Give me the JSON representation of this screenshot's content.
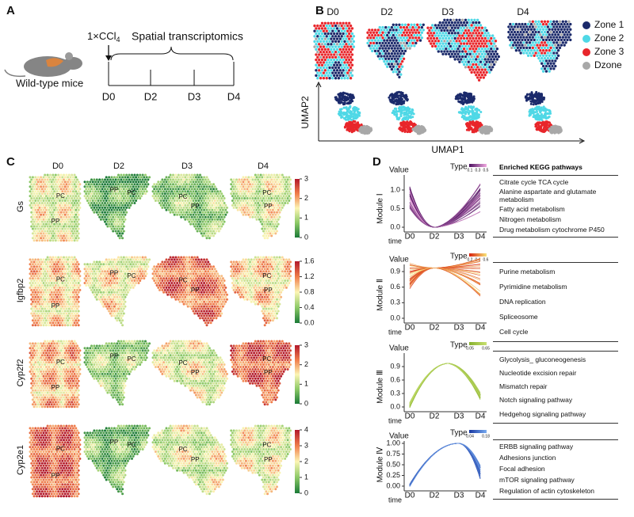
{
  "panel_a": {
    "label": "A",
    "treatment": {
      "text": "1×CCl",
      "subscript": "4"
    },
    "assay": "Spatial transcriptomics",
    "mouse": "Wild-type mice",
    "timepoints": [
      "D0",
      "D2",
      "D3",
      "D4"
    ]
  },
  "panel_b": {
    "label": "B",
    "timepoints": [
      "D0",
      "D2",
      "D3",
      "D4"
    ],
    "legend": [
      {
        "label": "Zone 1",
        "color": "#1b2a6b"
      },
      {
        "label": "Zone 2",
        "color": "#4fd8e6"
      },
      {
        "label": "Zone 3",
        "color": "#e8262b"
      },
      {
        "label": "Dzone",
        "color": "#a8a8a8"
      }
    ],
    "x_axis": "UMAP1",
    "y_axis": "UMAP2"
  },
  "panel_c": {
    "label": "C",
    "timepoints": [
      "D0",
      "D2",
      "D3",
      "D4"
    ],
    "zones": {
      "pp": "PP",
      "pc": "PC"
    },
    "genes": [
      {
        "name": "Gs",
        "scale": [
          "0",
          "1",
          "2",
          "3"
        ]
      },
      {
        "name": "Igfbp2",
        "scale": [
          "0.0",
          "0.4",
          "0.8",
          "1.2",
          "1.6"
        ]
      },
      {
        "name": "Cyp2f2",
        "scale": [
          "0",
          "1",
          "2",
          "3"
        ]
      },
      {
        "name": "Cyp2e1",
        "scale": [
          "0",
          "1",
          "2",
          "3",
          "4"
        ]
      }
    ]
  },
  "panel_d": {
    "label": "D",
    "kegg_header": "Enriched KEGG pathways",
    "y_label": "Value",
    "x_label": "time",
    "type_label": "Type",
    "timepoints": [
      "D0",
      "D2",
      "D3",
      "D4"
    ],
    "modules": [
      {
        "name": "Module Ⅰ",
        "yticks": [
          "0.0",
          "0.5",
          "1.0"
        ],
        "type_scale": [
          "0.1",
          "0.3",
          "0.5"
        ],
        "pathways": [
          "Citrate cycle TCA cycle",
          "Alanine aspartate and glutamate metabolism",
          "Fatty acid metabolism",
          "Nitrogen metabolism",
          "Drug  metabolism cytochrome P450"
        ]
      },
      {
        "name": "Module Ⅱ",
        "yticks": [
          "0.0",
          "0.3",
          "0.6",
          "0.9"
        ],
        "type_scale": [
          "0.2",
          "0.4",
          "0.6"
        ],
        "pathways": [
          "Purine metabolism",
          "Pyrimidine metabolism",
          "DNA replication",
          "Spliceosome",
          "Cell cycle"
        ]
      },
      {
        "name": "Module Ⅲ",
        "yticks": [
          "0.0",
          "0.3",
          "0.6",
          "0.9"
        ],
        "type_scale": [
          "0.05",
          "0.65"
        ],
        "pathways": [
          "Glycolysis_ gluconeogenesis",
          "Nucleotide excision repair",
          "Mismatch repair",
          "Notch signaling pathway",
          "Hedgehog signaling pathway"
        ]
      },
      {
        "name": "Module Ⅳ",
        "yticks": [
          "0.00",
          "0.25",
          "0.50",
          "0.75",
          "1.00"
        ],
        "type_scale": [
          "0.04",
          "0.18"
        ],
        "pathways": [
          "ERBB signaling pathway",
          "Adhesions junction",
          "Focal adhesion",
          "mTOR signaling pathway",
          "Regulation of actin cytoskeleton"
        ]
      }
    ]
  }
}
